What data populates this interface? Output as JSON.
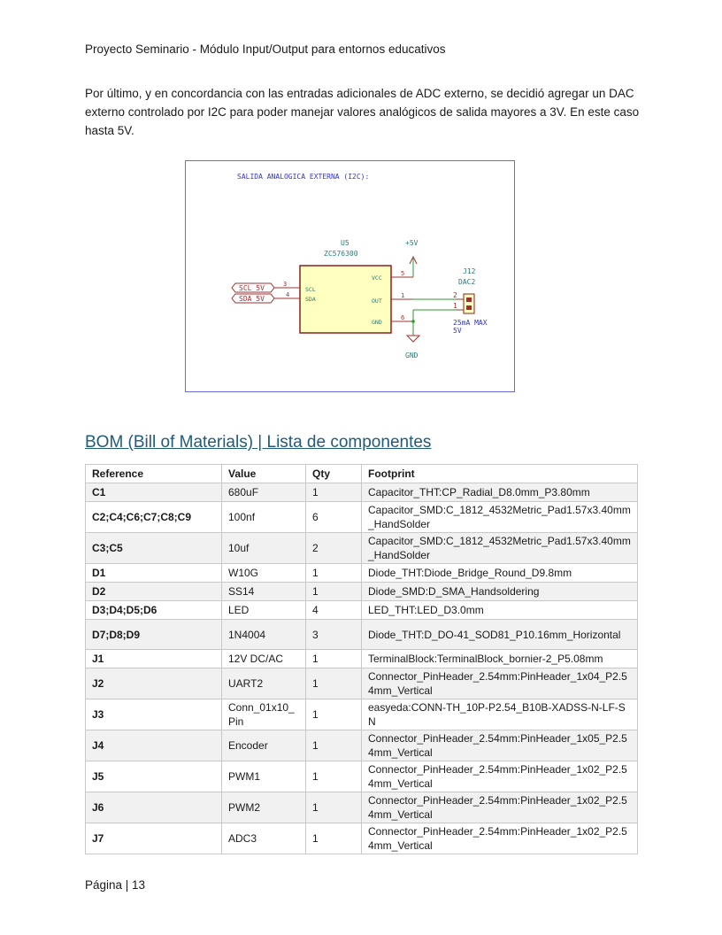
{
  "header": {
    "title": "Proyecto Seminario - Módulo Input/Output para entornos educativos"
  },
  "intro": "Por último, y en concordancia con las entradas adicionales de ADC externo, se decidió agregar un DAC externo controlado por I2C para poder manejar valores analógicos de salida mayores a 3V. En este caso hasta 5V.",
  "schematic": {
    "title": "SALIDA ANALOGICA EXTERNA (I2C):",
    "ref": "U5",
    "part": "ZC576300",
    "power": "+5V",
    "ground": "GND",
    "pins": {
      "vcc": "VCC",
      "out": "OUT",
      "gnd": "GND",
      "scl": "SCL",
      "sda": "SDA",
      "n5": "5",
      "n1": "1",
      "n6": "6",
      "n3": "3",
      "n4": "4"
    },
    "labels": {
      "scl": "SCL_5V",
      "sda": "SDA_5V"
    },
    "connector": {
      "ref": "J12",
      "name": "DAC2",
      "p2": "2",
      "p1": "1",
      "note1": "25mA MAX",
      "note2": "5V"
    }
  },
  "bom": {
    "heading": "BOM (Bill of Materials) | Lista de componentes",
    "columns": [
      "Reference",
      "Value",
      "Qty",
      "Footprint"
    ],
    "rows": [
      {
        "ref": "C1",
        "value": "680uF",
        "qty": "1",
        "footprint": "Capacitor_THT:CP_Radial_D8.0mm_P3.80mm"
      },
      {
        "ref": "C2;C4;C6;C7;C8;C9",
        "value": "100nf",
        "qty": "6",
        "footprint": "Capacitor_SMD:C_1812_4532Metric_Pad1.57x3.40mm_HandSolder"
      },
      {
        "ref": "C3;C5",
        "value": "10uf",
        "qty": "2",
        "footprint": "Capacitor_SMD:C_1812_4532Metric_Pad1.57x3.40mm_HandSolder"
      },
      {
        "ref": "D1",
        "value": "W10G",
        "qty": "1",
        "footprint": "Diode_THT:Diode_Bridge_Round_D9.8mm"
      },
      {
        "ref": "D2",
        "value": "SS14",
        "qty": "1",
        "footprint": "Diode_SMD:D_SMA_Handsoldering"
      },
      {
        "ref": "D3;D4;D5;D6",
        "value": "LED",
        "qty": "4",
        "footprint": "LED_THT:LED_D3.0mm"
      },
      {
        "ref": "D7;D8;D9",
        "value": "1N4004",
        "qty": "3",
        "footprint": "Diode_THT:D_DO-41_SOD81_P10.16mm_Horizontal"
      },
      {
        "ref": "J1",
        "value": "12V DC/AC",
        "qty": "1",
        "footprint": "TerminalBlock:TerminalBlock_bornier-2_P5.08mm"
      },
      {
        "ref": "J2",
        "value": "UART2",
        "qty": "1",
        "footprint": "Connector_PinHeader_2.54mm:PinHeader_1x04_P2.54mm_Vertical"
      },
      {
        "ref": "J3",
        "value": "Conn_01x10_Pin",
        "qty": "1",
        "footprint": "easyeda:CONN-TH_10P-P2.54_B10B-XADSS-N-LF-SN"
      },
      {
        "ref": "J4",
        "value": "Encoder",
        "qty": "1",
        "footprint": "Connector_PinHeader_2.54mm:PinHeader_1x05_P2.54mm_Vertical"
      },
      {
        "ref": "J5",
        "value": "PWM1",
        "qty": "1",
        "footprint": "Connector_PinHeader_2.54mm:PinHeader_1x02_P2.54mm_Vertical"
      },
      {
        "ref": "J6",
        "value": "PWM2",
        "qty": "1",
        "footprint": "Connector_PinHeader_2.54mm:PinHeader_1x02_P2.54mm_Vertical"
      },
      {
        "ref": "J7",
        "value": "ADC3",
        "qty": "1",
        "footprint": "Connector_PinHeader_2.54mm:PinHeader_1x02_P2.54mm_Vertical"
      }
    ]
  },
  "footer": {
    "page": "Página | 13"
  }
}
